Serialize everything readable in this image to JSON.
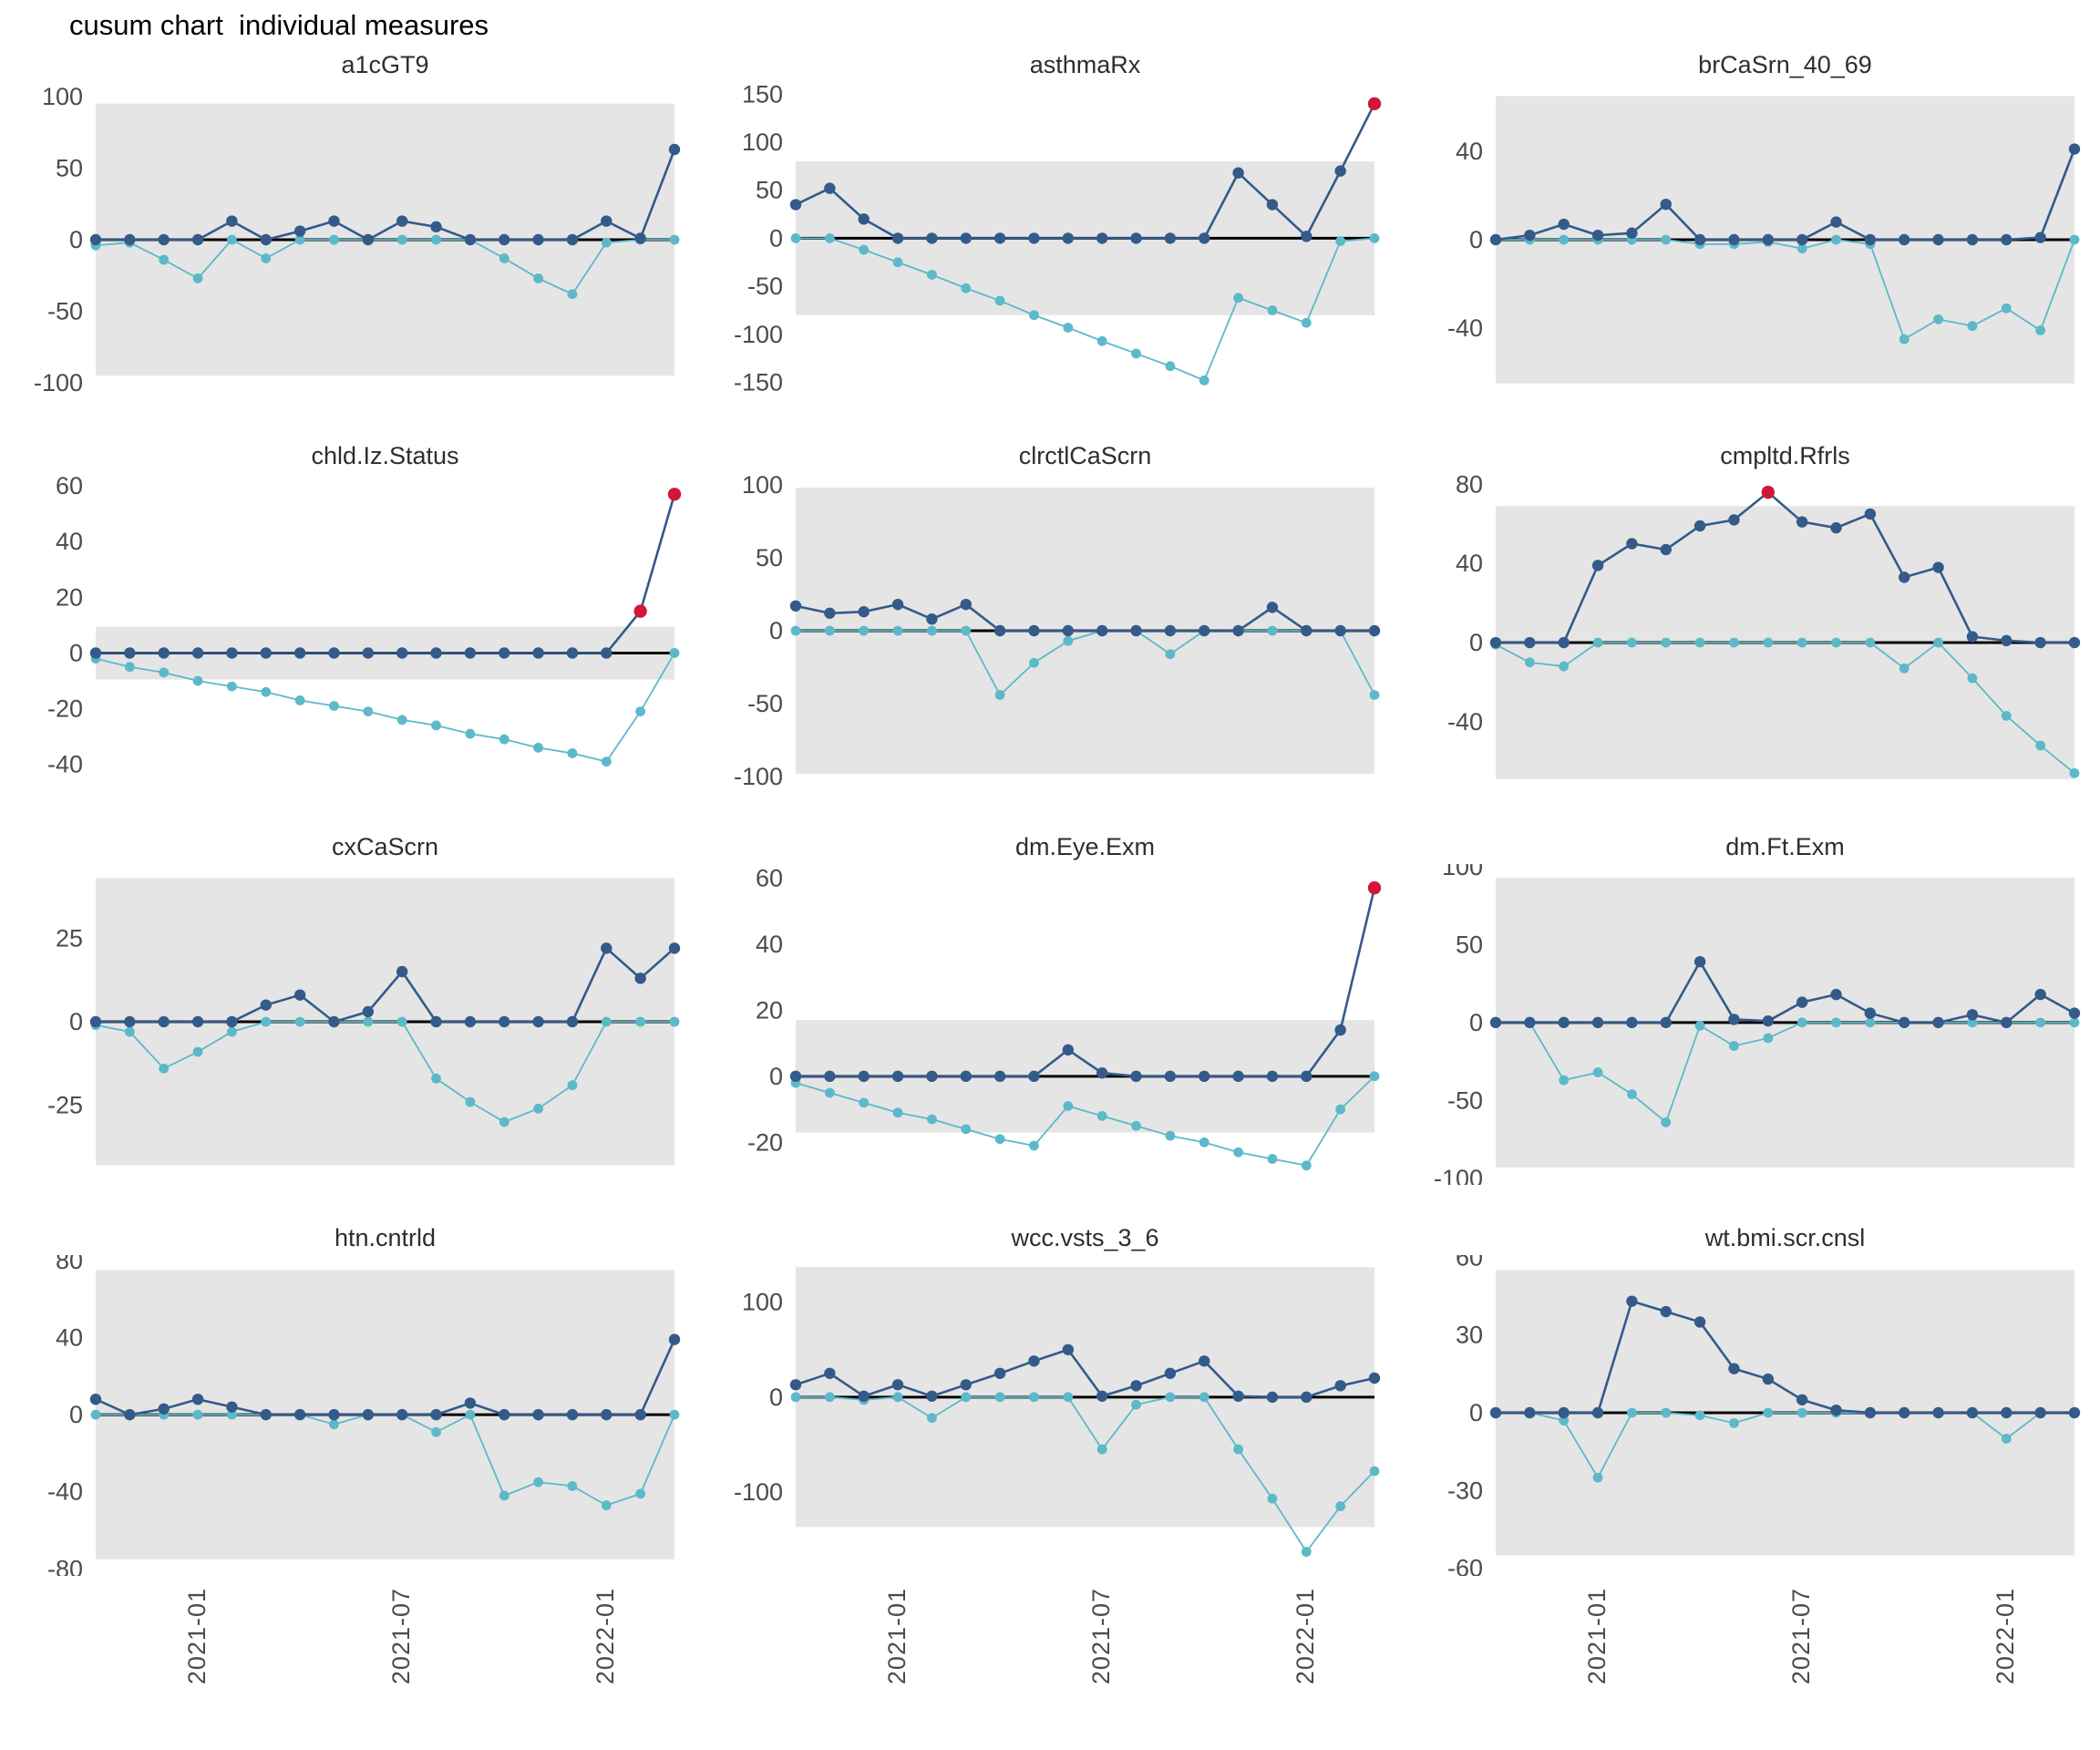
{
  "title": "cusum chart  individual measures",
  "colors": {
    "upper_series": "#345a8a",
    "lower_series": "#5cb9c9",
    "signal": "#d0173a",
    "band": "#e5e5e5",
    "zero_line": "#000000",
    "axis_text": "#4c4c4c",
    "panel_title_text": "#2e2e2e"
  },
  "x_axis": {
    "tick_labels": [
      "2021-01",
      "2021-07",
      "2022-01"
    ],
    "tick_indices": [
      3,
      9,
      15
    ],
    "label_angle_degrees": 90
  },
  "chart_data": {
    "type": "line",
    "title": "cusum chart  individual measures",
    "series_semantics": {
      "upper": "upper cusum (dark navy, circles)",
      "lower": "lower cusum (light cyan, circles)",
      "signals": "0-based indices of upper-series points drawn red (out of control)",
      "band": "grey control-limit band from -band_limit to +band_limit"
    },
    "x": [
      "2020-10",
      "2020-11",
      "2020-12",
      "2021-01",
      "2021-02",
      "2021-03",
      "2021-04",
      "2021-05",
      "2021-06",
      "2021-07",
      "2021-08",
      "2021-09",
      "2021-10",
      "2021-11",
      "2021-12",
      "2022-01",
      "2022-02",
      "2022-03"
    ],
    "panels": [
      {
        "name": "a1cGT9",
        "ylim": [
          -105,
          105
        ],
        "yticks": [
          100,
          50,
          0,
          -50,
          -100
        ],
        "band_limit": 95,
        "upper": [
          0,
          0,
          0,
          0,
          13,
          0,
          6,
          13,
          0,
          13,
          9,
          0,
          0,
          0,
          0,
          13,
          1,
          63
        ],
        "lower": [
          -4,
          -2,
          -14,
          -27,
          0,
          -13,
          0,
          0,
          0,
          0,
          0,
          0,
          -13,
          -27,
          -38,
          -2,
          0,
          0
        ],
        "signals": []
      },
      {
        "name": "asthmaRx",
        "ylim": [
          -158,
          155
        ],
        "yticks": [
          150,
          100,
          50,
          0,
          -50,
          -100,
          -150
        ],
        "band_limit": 80,
        "upper": [
          35,
          52,
          20,
          0,
          0,
          0,
          0,
          0,
          0,
          0,
          0,
          0,
          0,
          68,
          35,
          2,
          70,
          140
        ],
        "lower": [
          0,
          0,
          -12,
          -25,
          -38,
          -52,
          -65,
          -80,
          -93,
          -107,
          -120,
          -133,
          -148,
          -62,
          -75,
          -88,
          -3,
          0
        ],
        "signals": [
          17
        ]
      },
      {
        "name": "brCaSrn_40_69",
        "ylim": [
          -68,
          68
        ],
        "yticks": [
          40,
          0,
          -40
        ],
        "band_limit": 65,
        "upper": [
          0,
          2,
          7,
          2,
          3,
          16,
          0,
          0,
          0,
          0,
          8,
          0,
          0,
          0,
          0,
          0,
          1,
          41
        ],
        "lower": [
          0,
          0,
          0,
          0,
          0,
          0,
          -2,
          -2,
          -1,
          -4,
          0,
          -2,
          -45,
          -36,
          -39,
          -31,
          -41,
          0
        ],
        "signals": []
      },
      {
        "name": "chld.Iz.Status",
        "ylim": [
          -46,
          62
        ],
        "yticks": [
          60,
          40,
          20,
          0,
          -20,
          -40
        ],
        "band_limit": 9.5,
        "upper": [
          0,
          0,
          0,
          0,
          0,
          0,
          0,
          0,
          0,
          0,
          0,
          0,
          0,
          0,
          0,
          0,
          15,
          57
        ],
        "lower": [
          -2,
          -5,
          -7,
          -10,
          -12,
          -14,
          -17,
          -19,
          -21,
          -24,
          -26,
          -29,
          -31,
          -34,
          -36,
          -39,
          -21,
          0
        ],
        "signals": [
          16,
          17
        ]
      },
      {
        "name": "clrctlCaScrn",
        "ylim": [
          -103,
          103
        ],
        "yticks": [
          100,
          50,
          0,
          -50,
          -100
        ],
        "band_limit": 98,
        "upper": [
          17,
          12,
          13,
          18,
          8,
          18,
          0,
          0,
          0,
          0,
          0,
          0,
          0,
          0,
          16,
          0,
          0,
          0
        ],
        "lower": [
          0,
          0,
          0,
          0,
          0,
          0,
          -44,
          -22,
          -7,
          0,
          0,
          -16,
          0,
          0,
          0,
          0,
          0,
          -44
        ],
        "signals": []
      },
      {
        "name": "cmpltd.Rfrls",
        "ylim": [
          -70,
          82
        ],
        "yticks": [
          80,
          40,
          0,
          -40
        ],
        "band_limit": 69,
        "upper": [
          0,
          0,
          0,
          39,
          50,
          47,
          59,
          62,
          76,
          61,
          58,
          65,
          33,
          38,
          3,
          1,
          0,
          0
        ],
        "lower": [
          -1,
          -10,
          -12,
          0,
          0,
          0,
          0,
          0,
          0,
          0,
          0,
          0,
          -13,
          0,
          -18,
          -37,
          -52,
          -66
        ],
        "signals": [
          8
        ]
      },
      {
        "name": "cxCaScrn",
        "ylim": [
          -45,
          45
        ],
        "yticks": [
          25,
          0,
          -25
        ],
        "band_limit": 43,
        "upper": [
          0,
          0,
          0,
          0,
          0,
          5,
          8,
          0,
          3,
          15,
          0,
          0,
          0,
          0,
          0,
          22,
          13,
          22
        ],
        "lower": [
          -1,
          -3,
          -14,
          -9,
          -3,
          0,
          0,
          0,
          0,
          0,
          -17,
          -24,
          -30,
          -26,
          -19,
          0,
          0,
          0
        ],
        "signals": []
      },
      {
        "name": "dm.Eye.Exm",
        "ylim": [
          -29,
          62
        ],
        "yticks": [
          60,
          40,
          20,
          0,
          -20
        ],
        "band_limit": 17,
        "upper": [
          0,
          0,
          0,
          0,
          0,
          0,
          0,
          0,
          8,
          1,
          0,
          0,
          0,
          0,
          0,
          0,
          14,
          57
        ],
        "lower": [
          -2,
          -5,
          -8,
          -11,
          -13,
          -16,
          -19,
          -21,
          -9,
          -12,
          -15,
          -18,
          -20,
          -23,
          -25,
          -27,
          -10,
          0
        ],
        "signals": [
          17
        ]
      },
      {
        "name": "dm.Ft.Exm",
        "ylim": [
          -96,
          97
        ],
        "yticks": [
          100,
          50,
          0,
          -50,
          -100
        ],
        "band_limit": 93,
        "upper": [
          0,
          0,
          0,
          0,
          0,
          0,
          39,
          2,
          1,
          13,
          18,
          6,
          0,
          0,
          5,
          0,
          18,
          6
        ],
        "lower": [
          0,
          0,
          -37,
          -32,
          -46,
          -64,
          -2,
          -15,
          -10,
          0,
          0,
          0,
          0,
          0,
          0,
          0,
          0,
          0
        ],
        "signals": []
      },
      {
        "name": "htn.cntrld",
        "ylim": [
          -77,
          79
        ],
        "yticks": [
          80,
          40,
          0,
          -40,
          -80
        ],
        "band_limit": 75,
        "upper": [
          8,
          0,
          3,
          8,
          4,
          0,
          0,
          0,
          0,
          0,
          0,
          6,
          0,
          0,
          0,
          0,
          0,
          39
        ],
        "lower": [
          0,
          0,
          0,
          0,
          0,
          0,
          0,
          -5,
          0,
          0,
          -9,
          0,
          -42,
          -35,
          -37,
          -47,
          -41,
          0
        ],
        "signals": []
      },
      {
        "name": "wcc.vsts_3_6",
        "ylim": [
          -175,
          142
        ],
        "yticks": [
          100,
          0,
          -100
        ],
        "band_limit": 137,
        "upper": [
          13,
          25,
          1,
          13,
          1,
          13,
          25,
          38,
          50,
          1,
          12,
          25,
          38,
          1,
          0,
          0,
          12,
          20
        ],
        "lower": [
          0,
          0,
          -3,
          0,
          -22,
          0,
          0,
          0,
          0,
          -55,
          -8,
          0,
          0,
          -55,
          -107,
          -163,
          -115,
          -78
        ],
        "signals": []
      },
      {
        "name": "wt.bmi.scr.cnsl",
        "ylim": [
          -58,
          58
        ],
        "yticks": [
          60,
          30,
          0,
          -30,
          -60
        ],
        "band_limit": 55,
        "upper": [
          0,
          0,
          0,
          0,
          43,
          39,
          35,
          17,
          13,
          5,
          1,
          0,
          0,
          0,
          0,
          0,
          0,
          0
        ],
        "lower": [
          0,
          0,
          -3,
          -25,
          0,
          0,
          -1,
          -4,
          0,
          0,
          0,
          0,
          0,
          0,
          0,
          -10,
          0,
          0
        ],
        "signals": []
      }
    ]
  }
}
